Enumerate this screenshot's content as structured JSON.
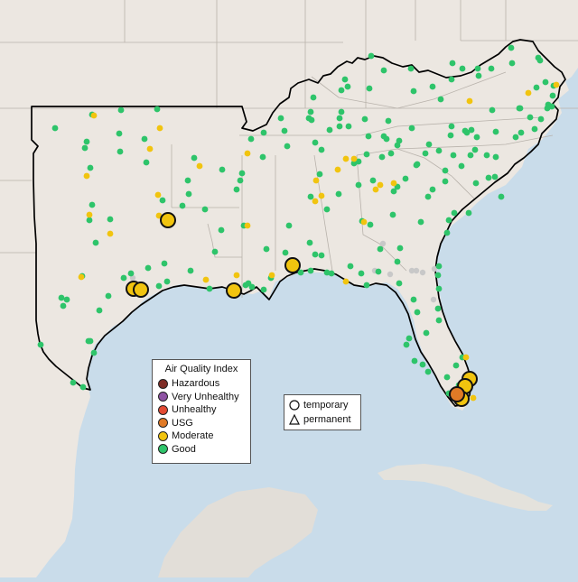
{
  "map": {
    "colors": {
      "ocean": "#c9dcea",
      "land": "#ece7e1",
      "land_south": "#e2ded8",
      "state_border": "#b8b2ab",
      "region_border": "#000000",
      "cuba": "#e4e2dc"
    }
  },
  "legend": {
    "title": "Air Quality Index",
    "categories": [
      {
        "label": "Hazardous",
        "color": "#7e2c26"
      },
      {
        "label": "Very Unhealthy",
        "color": "#8e53a3"
      },
      {
        "label": "Unhealthy",
        "color": "#e24a33"
      },
      {
        "label": "USG",
        "color": "#e07a26"
      },
      {
        "label": "Moderate",
        "color": "#f1c40f"
      },
      {
        "label": "Good",
        "color": "#2ec46a"
      }
    ]
  },
  "marker_legend": {
    "temporary": "temporary",
    "permanent": "permanent"
  },
  "monitor_counts": {
    "good": 206,
    "moderate": 34,
    "usg": 1,
    "no_data": 9
  }
}
